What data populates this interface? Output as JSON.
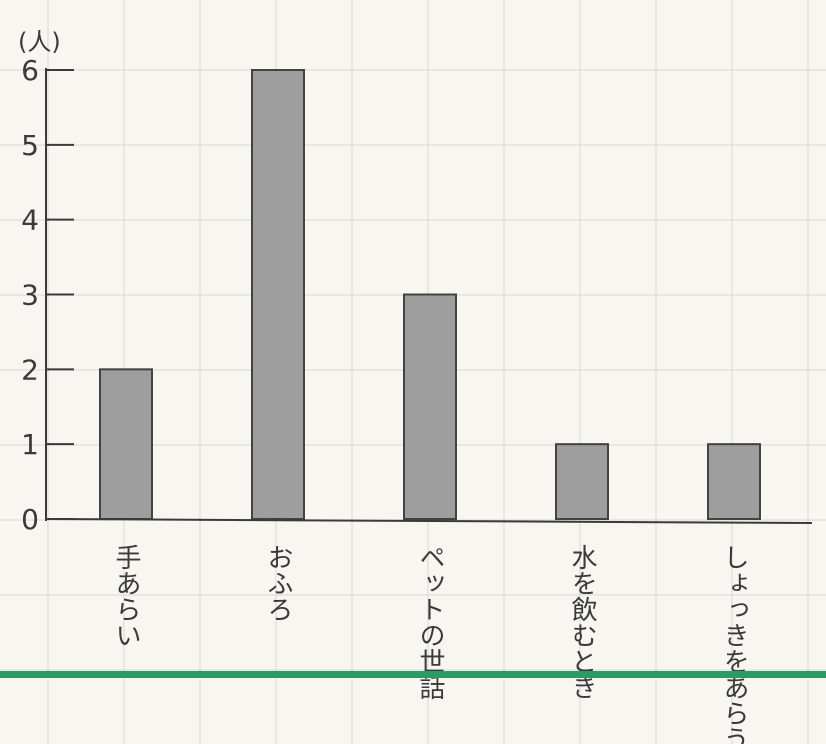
{
  "chart_data": {
    "type": "bar",
    "unit_label": "(人)",
    "categories": [
      "手あらい",
      "おふろ",
      "ペットの世話",
      "水を飲むとき",
      "しょっきをあらう"
    ],
    "values": [
      2,
      6,
      3,
      1,
      1
    ],
    "y_ticks": [
      "0",
      "1",
      "2",
      "3",
      "4",
      "5",
      "6"
    ],
    "ylim": [
      0,
      6
    ],
    "grid": true,
    "colors": {
      "paper": "#f7f6f1",
      "grid": "#d9d9d4",
      "pencil": "#3a3a3a",
      "bar_fill": "#9a9a9a",
      "divider": "#2e9a63"
    }
  }
}
